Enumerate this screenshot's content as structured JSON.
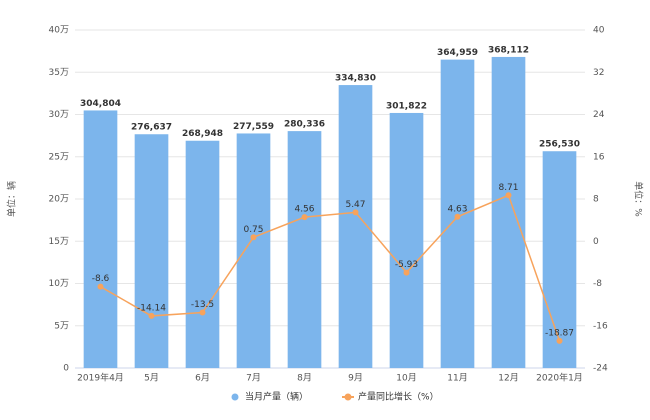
{
  "chart_data": {
    "type": "bar",
    "categories": [
      "2019年4月",
      "5月",
      "6月",
      "7月",
      "8月",
      "9月",
      "10月",
      "11月",
      "12月",
      "2020年1月"
    ],
    "series": [
      {
        "name": "当月产量（辆）",
        "color": "#7cb5ec",
        "type": "bar",
        "values": [
          304804,
          276637,
          268948,
          277559,
          280336,
          334830,
          301822,
          364959,
          368112,
          256530
        ],
        "value_labels": [
          "304,804",
          "276,637",
          "268,948",
          "277,559",
          "280,336",
          "334,830",
          "301,822",
          "364,959",
          "368,112",
          "256,530"
        ]
      },
      {
        "name": "产量同比增长（%）",
        "color": "#f7a35c",
        "type": "line",
        "axis": "y2",
        "values": [
          -8.6,
          -14.14,
          -13.5,
          0.75,
          4.56,
          5.47,
          -5.93,
          4.63,
          8.71,
          -18.87
        ]
      }
    ],
    "ylabel": "单位：辆",
    "y2label": "单位：%",
    "ylim": [
      0,
      400000
    ],
    "yticks": [
      0,
      {
        "value": 50000,
        "label": "5万"
      },
      {
        "value": 100000,
        "label": "10万"
      },
      {
        "value": 150000,
        "label": "15万"
      },
      {
        "value": 200000,
        "label": "20万"
      },
      {
        "value": 250000,
        "label": "25万"
      },
      {
        "value": 300000,
        "label": "30万"
      },
      {
        "value": 350000,
        "label": "35万"
      },
      {
        "value": 400000,
        "label": "40万"
      }
    ],
    "y2lim": [
      -24,
      40
    ],
    "y2ticks": [
      -24,
      -16,
      -8,
      0,
      8,
      16,
      24,
      32,
      40
    ],
    "grid": true,
    "legend": "bottom"
  }
}
